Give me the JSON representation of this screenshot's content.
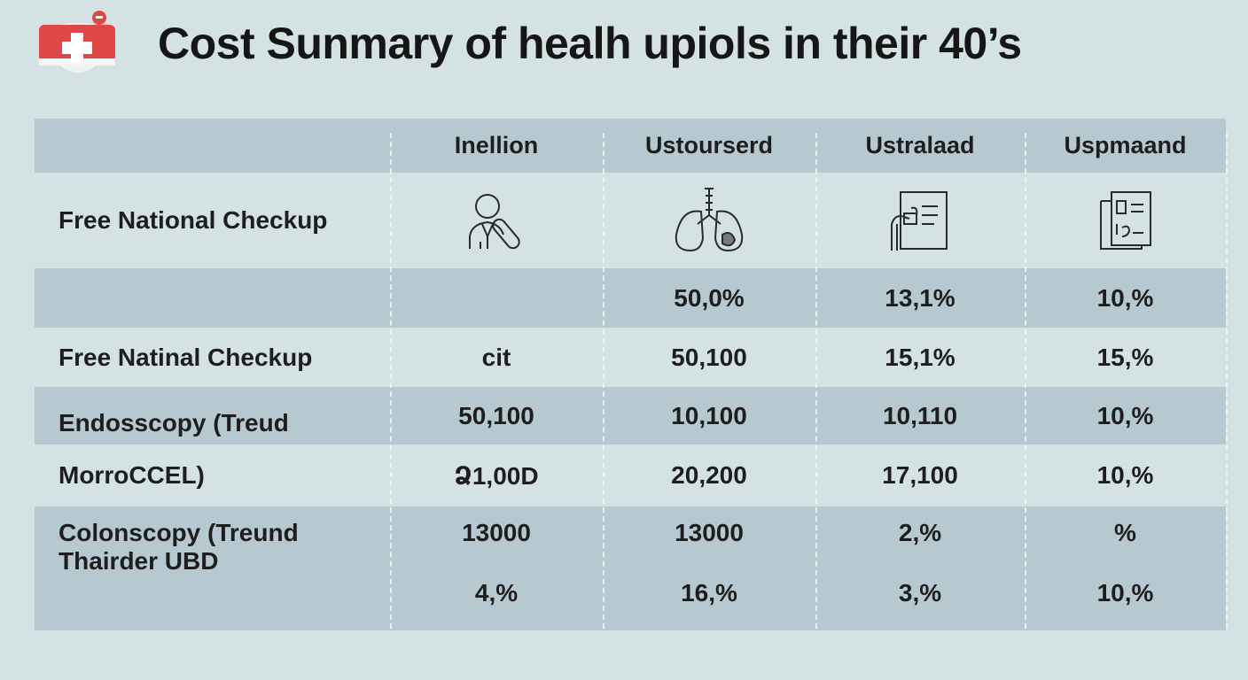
{
  "title": "Cost Sunmary of healh upiols in their 40’s",
  "table": {
    "columns": [
      "",
      "Inellion",
      "Ustourserd",
      "Ustralaad",
      "Uspmaand"
    ],
    "icon_row": {
      "label": "Free National Checkup",
      "icons": [
        "doctor-icon",
        "lungs-icon",
        "medical-chart-icon",
        "document-icon"
      ]
    },
    "rows": [
      {
        "label": "",
        "values": [
          "",
          "50,0%",
          "13,1%",
          "10,%"
        ]
      },
      {
        "label": "Free Natinal Checkup",
        "values": [
          "cit",
          "50,100",
          "15,1%",
          "15,%"
        ]
      },
      {
        "label": "Endosscopy (Treud",
        "values": [
          "50,100",
          "10,100",
          "10,110",
          "10,%"
        ]
      },
      {
        "label": "MorroCCEL)",
        "values": [
          "Ձ1,00D",
          "20,200",
          "17,100",
          "10,%"
        ]
      },
      {
        "label": "Colonscopy (Treund",
        "values": [
          "13000",
          "13000",
          "2,%",
          "%"
        ]
      },
      {
        "label": "Thairder UBD",
        "values": [
          "4,%",
          "16,%",
          "3,%",
          "10,%"
        ]
      }
    ]
  },
  "colors": {
    "background": "#d4e2e4",
    "row_band": "#b6c9d0",
    "logo_red": "#e04848"
  }
}
